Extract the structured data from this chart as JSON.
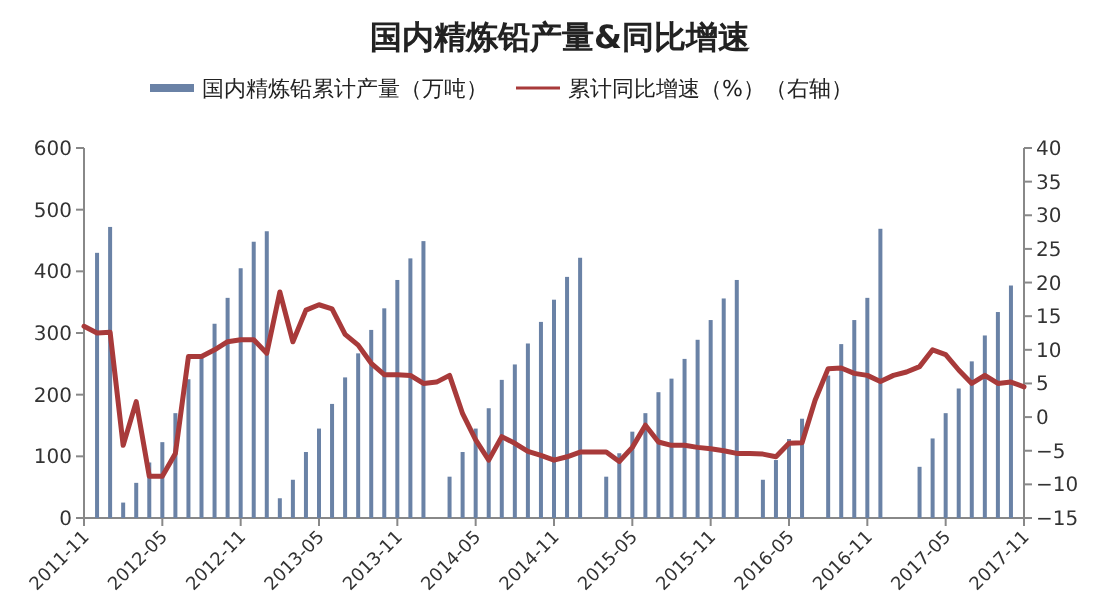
{
  "chart_data": {
    "type": "bar",
    "title": "国内精炼铅产量&同比增速",
    "legend": "top",
    "grid": false,
    "categories": [
      "2011-11",
      null,
      null,
      null,
      null,
      null,
      "2012-05",
      null,
      null,
      null,
      null,
      null,
      "2012-11",
      null,
      null,
      null,
      null,
      null,
      "2013-05",
      null,
      null,
      null,
      null,
      null,
      "2013-11",
      null,
      null,
      null,
      null,
      null,
      "2014-05",
      null,
      null,
      null,
      null,
      null,
      "2014-11",
      null,
      null,
      null,
      null,
      null,
      "2015-05",
      null,
      null,
      null,
      null,
      null,
      "2015-11",
      null,
      null,
      null,
      null,
      null,
      "2016-05",
      null,
      null,
      null,
      null,
      null,
      "2016-11",
      null,
      null,
      null,
      null,
      null,
      "2017-05",
      null,
      null,
      null,
      null,
      null,
      "2017-11"
    ],
    "series": [
      {
        "name": "国内精炼铅累计产量（万吨）",
        "color": "#6a82a6",
        "values": [
          null,
          430,
          472,
          25,
          57,
          90,
          123,
          170,
          225,
          265,
          315,
          357,
          405,
          448,
          465,
          32,
          62,
          107,
          145,
          185,
          228,
          267,
          305,
          340,
          386,
          421,
          449,
          null,
          67,
          107,
          145,
          178,
          224,
          249,
          283,
          318,
          354,
          391,
          422,
          null,
          67,
          105,
          140,
          170,
          204,
          226,
          258,
          289,
          321,
          356,
          386,
          null,
          62,
          94,
          128,
          161,
          null,
          231,
          282,
          321,
          357,
          469,
          null,
          null,
          83,
          129,
          170,
          210,
          254,
          296,
          334,
          377,
          null
        ]
      },
      {
        "name": "累计同比增速（%）（右轴）",
        "type": "line",
        "axis": "y2",
        "color": "#a83a3a",
        "values": [
          13.5,
          12.5,
          12.6,
          -4.2,
          2.3,
          -8.8,
          -8.8,
          -5.4,
          9.0,
          9.0,
          10.0,
          11.2,
          11.5,
          11.5,
          9.5,
          18.6,
          11.2,
          15.9,
          16.7,
          16.1,
          12.3,
          10.7,
          8.0,
          6.3,
          6.3,
          6.2,
          5.0,
          5.2,
          6.2,
          0.5,
          -3.4,
          -6.4,
          -2.9,
          -3.9,
          -5.1,
          -5.7,
          -6.4,
          -5.9,
          -5.2,
          -5.2,
          -5.2,
          -6.6,
          -4.5,
          -1.2,
          -3.7,
          -4.2,
          -4.2,
          -4.5,
          -4.7,
          -5.0,
          -5.4,
          -5.4,
          -5.5,
          -5.9,
          -3.9,
          -3.8,
          2.5,
          7.2,
          7.3,
          6.5,
          6.2,
          5.3,
          6.2,
          6.7,
          7.5,
          10.0,
          9.3,
          7.0,
          5.0,
          6.2,
          5.0,
          5.2,
          4.5
        ]
      }
    ],
    "ylim": [
      0,
      600
    ],
    "yticks": [
      0,
      100,
      200,
      300,
      400,
      500,
      600
    ],
    "y2lim": [
      -15,
      40
    ],
    "y2ticks": [
      -15,
      -10,
      -5,
      0,
      5,
      10,
      15,
      20,
      25,
      30,
      35,
      40
    ]
  }
}
